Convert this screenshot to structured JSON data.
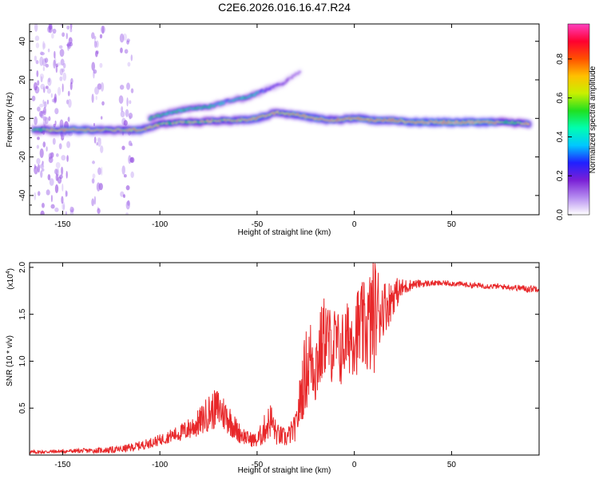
{
  "title": "C2E6.2026.016.16.47.R24",
  "colors": {
    "snr_line": "#e8282a",
    "axis": "#000000",
    "background": "#ffffff"
  },
  "chart_data": [
    {
      "type": "heatmap",
      "title": "C2E6.2026.016.16.47.R24",
      "xlabel": "Height of straight line (km)",
      "ylabel": "Frequency (Hz)",
      "xlim": [
        -167,
        95
      ],
      "ylim": [
        -50,
        49
      ],
      "xticks": [
        -150,
        -100,
        -50,
        0,
        50
      ],
      "yticks": [
        -40,
        -20,
        0,
        20,
        40
      ],
      "colorbar": {
        "label": "Normalized spectral amplitude",
        "range": [
          0.0,
          0.98
        ],
        "ticks": [
          "0.0",
          "0.2",
          "0.4",
          "0.6",
          "0.8"
        ],
        "colormap": [
          "#ffffff",
          "#b58cf0",
          "#7a1fd6",
          "#2020ff",
          "#00c8ff",
          "#00ffb0",
          "#20e020",
          "#c8f000",
          "#ffc000",
          "#ff5000",
          "#ff0030",
          "#ff40c0"
        ]
      },
      "main_ridge_trace": [
        {
          "x": -165,
          "y": -6,
          "a": 0.55
        },
        {
          "x": -150,
          "y": -6,
          "a": 0.85
        },
        {
          "x": -140,
          "y": -6,
          "a": 0.9
        },
        {
          "x": -130,
          "y": -6,
          "a": 0.8
        },
        {
          "x": -120,
          "y": -6,
          "a": 0.75
        },
        {
          "x": -110,
          "y": -6,
          "a": 0.9
        },
        {
          "x": -100,
          "y": -3,
          "a": 0.7
        },
        {
          "x": -90,
          "y": -2,
          "a": 0.65
        },
        {
          "x": -80,
          "y": -2,
          "a": 0.7
        },
        {
          "x": -70,
          "y": -1,
          "a": 0.75
        },
        {
          "x": -60,
          "y": -1,
          "a": 0.8
        },
        {
          "x": -50,
          "y": 0,
          "a": 0.9
        },
        {
          "x": -40,
          "y": 3,
          "a": 0.75
        },
        {
          "x": -30,
          "y": 2,
          "a": 0.85
        },
        {
          "x": -20,
          "y": 0,
          "a": 0.9
        },
        {
          "x": -10,
          "y": -1,
          "a": 0.8
        },
        {
          "x": 0,
          "y": 0,
          "a": 0.85
        },
        {
          "x": 10,
          "y": -1,
          "a": 0.9
        },
        {
          "x": 20,
          "y": -1,
          "a": 0.85
        },
        {
          "x": 30,
          "y": -2,
          "a": 0.95
        },
        {
          "x": 40,
          "y": -2,
          "a": 0.95
        },
        {
          "x": 50,
          "y": -2,
          "a": 0.95
        },
        {
          "x": 60,
          "y": -2,
          "a": 0.95
        },
        {
          "x": 70,
          "y": -2,
          "a": 0.95
        },
        {
          "x": 80,
          "y": -2,
          "a": 0.6
        },
        {
          "x": 90,
          "y": -3,
          "a": 0.85
        }
      ],
      "upper_branch_trace": [
        {
          "x": -105,
          "y": 0,
          "a": 0.6
        },
        {
          "x": -95,
          "y": 3,
          "a": 0.5
        },
        {
          "x": -85,
          "y": 5,
          "a": 0.55
        },
        {
          "x": -75,
          "y": 6,
          "a": 0.5
        },
        {
          "x": -65,
          "y": 9,
          "a": 0.35
        },
        {
          "x": -55,
          "y": 11,
          "a": 0.55
        },
        {
          "x": -45,
          "y": 15,
          "a": 0.3
        },
        {
          "x": -37,
          "y": 18,
          "a": 0.2
        },
        {
          "x": -28,
          "y": 24,
          "a": 0.1
        }
      ],
      "noise_columns_x": [
        -162,
        -158,
        -152,
        -148,
        -132,
        -117
      ]
    },
    {
      "type": "line",
      "xlabel": "Height of straight line (km)",
      "ylabel": "SNR (10 * v/v)",
      "yscale_label": "(x10",
      "yscale_exponent": "4",
      "xlim": [
        -167,
        95
      ],
      "ylim": [
        0,
        2.05
      ],
      "xticks": [
        -150,
        -100,
        -50,
        0,
        50
      ],
      "yticks": [
        0.5,
        1.0,
        1.5,
        2.0
      ],
      "series": [
        {
          "color": "#e8282a",
          "envelope_x": [
            -167,
            -150,
            -130,
            -120,
            -110,
            -100,
            -95,
            -90,
            -85,
            -80,
            -75,
            -70,
            -65,
            -60,
            -55,
            -50,
            -47,
            -43,
            -40,
            -35,
            -30,
            -27,
            -25,
            -22,
            -20,
            -17,
            -15,
            -12,
            -10,
            -7,
            -5,
            -3,
            0,
            3,
            6,
            8,
            10,
            12,
            15,
            18,
            20,
            25,
            30,
            40,
            50,
            60,
            70,
            80,
            90,
            95
          ],
          "envelope_y": [
            0.03,
            0.04,
            0.05,
            0.06,
            0.1,
            0.16,
            0.2,
            0.23,
            0.28,
            0.34,
            0.45,
            0.5,
            0.4,
            0.25,
            0.18,
            0.15,
            0.25,
            0.38,
            0.22,
            0.18,
            0.3,
            0.7,
            0.9,
            1.05,
            0.95,
            1.15,
            1.3,
            1.15,
            1.2,
            1.1,
            1.2,
            1.25,
            1.3,
            1.35,
            1.35,
            1.4,
            1.5,
            1.55,
            1.58,
            1.62,
            1.7,
            1.78,
            1.82,
            1.83,
            1.83,
            1.81,
            1.8,
            1.79,
            1.77,
            1.78
          ],
          "spread_y": [
            0.02,
            0.02,
            0.03,
            0.04,
            0.05,
            0.06,
            0.07,
            0.09,
            0.12,
            0.15,
            0.2,
            0.22,
            0.18,
            0.12,
            0.08,
            0.08,
            0.15,
            0.2,
            0.12,
            0.1,
            0.15,
            0.35,
            0.45,
            0.45,
            0.45,
            0.45,
            0.45,
            0.4,
            0.4,
            0.4,
            0.4,
            0.4,
            0.45,
            0.5,
            0.5,
            0.6,
            0.65,
            0.5,
            0.3,
            0.25,
            0.2,
            0.1,
            0.05,
            0.03,
            0.03,
            0.03,
            0.03,
            0.03,
            0.04,
            0.04
          ]
        }
      ]
    }
  ]
}
